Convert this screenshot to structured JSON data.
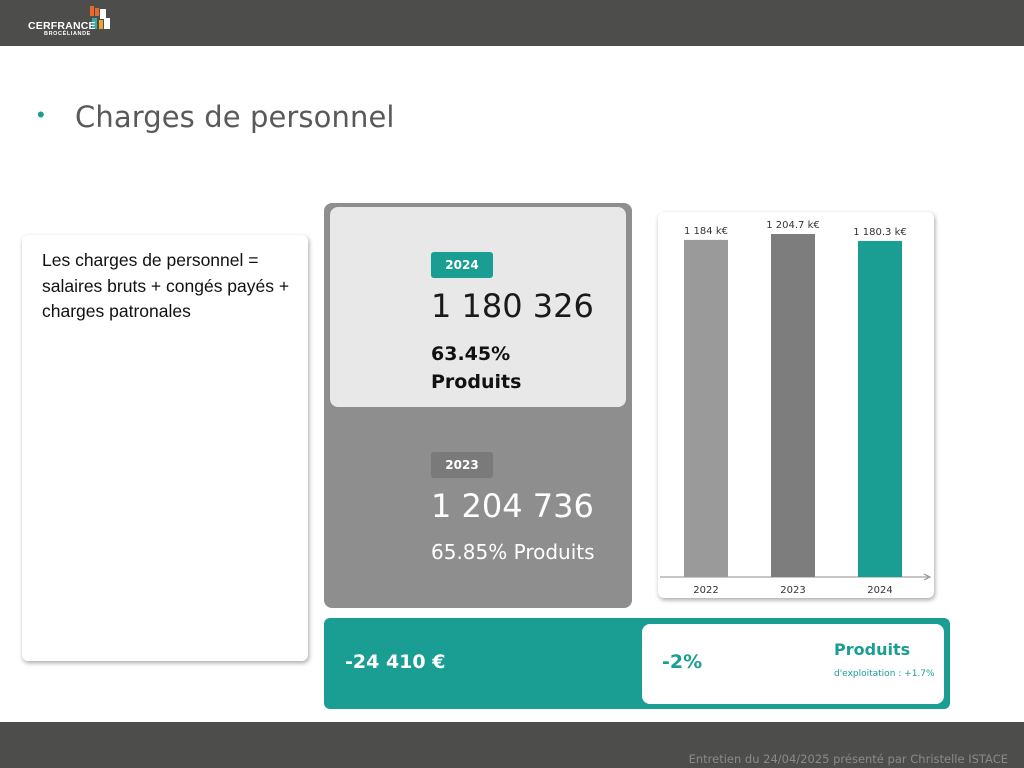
{
  "brand": {
    "name": "CERFRANCE",
    "sub": "BROCÉLIANDE",
    "accent": "#1a9e94",
    "dark_bar": "#4d4d4b"
  },
  "slide": {
    "bullet": "•",
    "title": "Charges de personnel"
  },
  "description": "Les charges de personnel = salaires bruts + congés payés + charges patronales",
  "kpi": {
    "current": {
      "year": "2024",
      "value": "1 180 326",
      "pct": "63.45%",
      "pct_label": "Produits"
    },
    "previous": {
      "year": "2023",
      "value": "1 204 736",
      "pct_text": "65.85% Produits"
    }
  },
  "delta": {
    "amount": "-24 410 €",
    "percent": "-2%",
    "products_label": "Produits",
    "products_sub": "d'exploitation : +1.7%"
  },
  "chart_data": {
    "type": "bar",
    "categories": [
      "2022",
      "2023",
      "2024"
    ],
    "values": [
      1184,
      1204.7,
      1180.3
    ],
    "data_labels": [
      "1 184 k€",
      "1 204.7 k€",
      "1 180.3 k€"
    ],
    "colors": [
      "#9a9a9a",
      "#7d7d7d",
      "#1a9e94"
    ],
    "unit": "k€",
    "ylim": [
      0,
      1204.7
    ],
    "grid": false,
    "legend": "none"
  },
  "footer": {
    "text": "Entretien du 24/04/2025 présenté par Christelle ISTACE"
  }
}
